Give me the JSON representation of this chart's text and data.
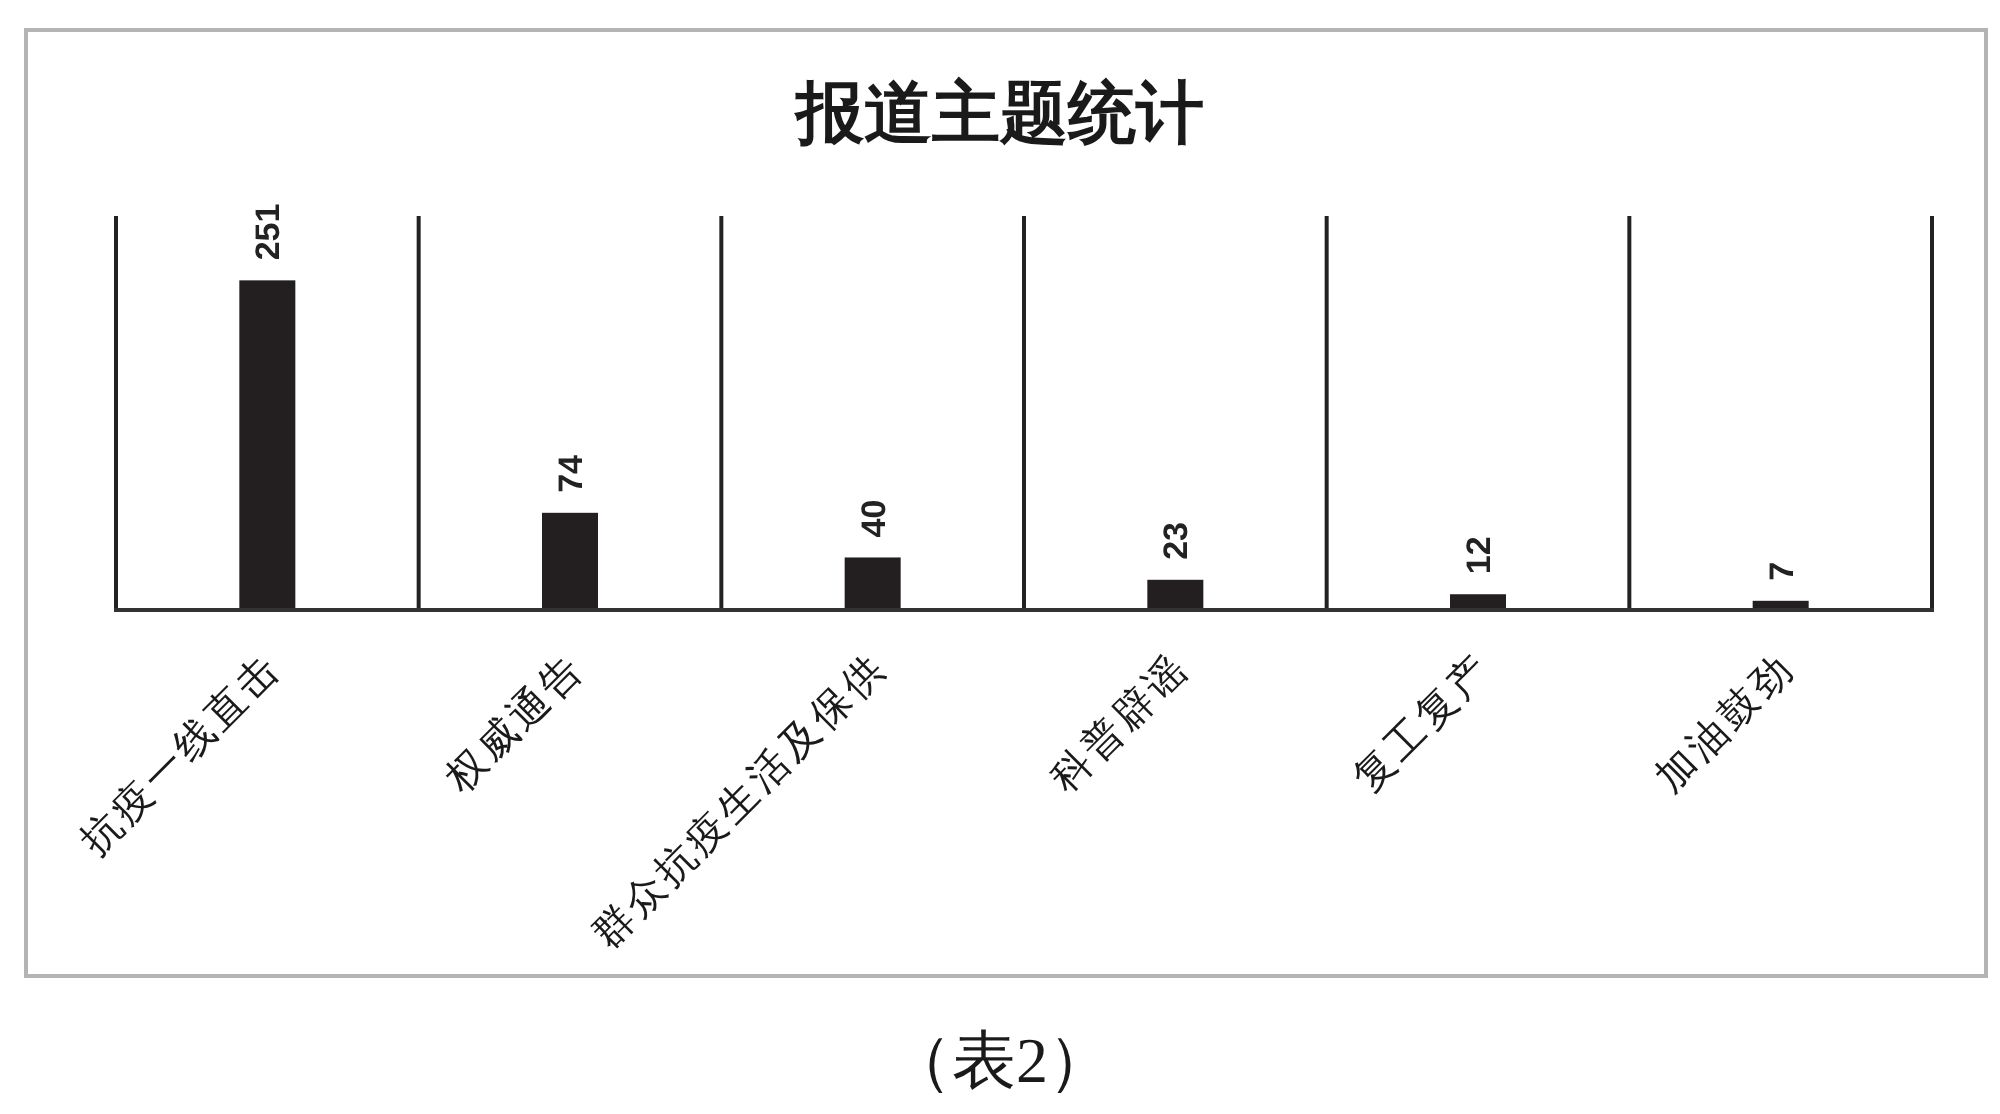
{
  "chart_data": {
    "type": "bar",
    "title": "报道主题统计",
    "annotations": [
      "（表2）"
    ],
    "categories": [
      "抗疫一线直击",
      "权威通告",
      "群众抗疫生活及保供",
      "科普辟谣",
      "复工复产",
      "加油鼓劲"
    ],
    "values": [
      251,
      74,
      40,
      23,
      12,
      7
    ],
    "color": "#231f20",
    "ylim": [
      0,
      300
    ],
    "data_labels": true,
    "grid": "x",
    "tick_labels": "x"
  }
}
